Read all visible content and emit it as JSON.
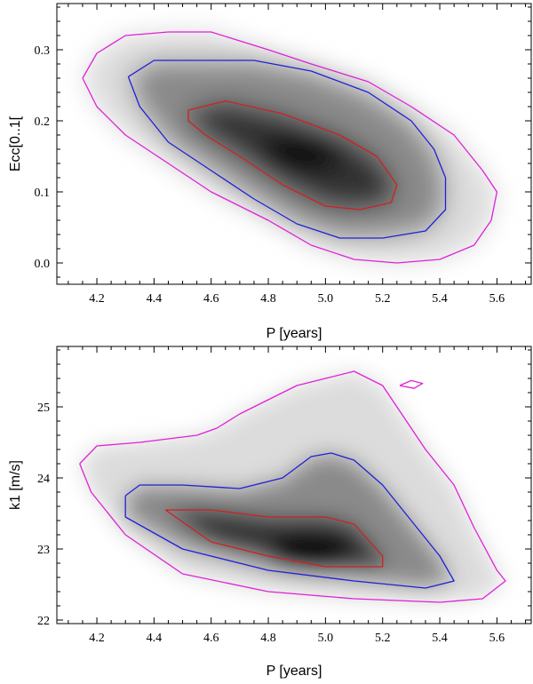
{
  "chart_data": [
    {
      "type": "density-contour",
      "xlabel": "P [years]",
      "ylabel": "Ecc[0..1[",
      "xlim": [
        4.06,
        5.72
      ],
      "ylim": [
        -0.03,
        0.365
      ],
      "xticks": [
        "4.2",
        "4.4",
        "4.6",
        "4.8",
        "5.0",
        "5.2",
        "5.4",
        "5.6"
      ],
      "yticks": [
        "0.0",
        "0.1",
        "0.2",
        "0.3"
      ],
      "density_peak": {
        "x": 4.92,
        "y": 0.155
      },
      "contours": [
        {
          "level": "inner",
          "color": "#d22020",
          "points": [
            [
              4.52,
              0.215
            ],
            [
              4.65,
              0.228
            ],
            [
              4.85,
              0.21
            ],
            [
              5.05,
              0.18
            ],
            [
              5.18,
              0.15
            ],
            [
              5.25,
              0.11
            ],
            [
              5.23,
              0.085
            ],
            [
              5.12,
              0.075
            ],
            [
              5.0,
              0.08
            ],
            [
              4.85,
              0.11
            ],
            [
              4.7,
              0.15
            ],
            [
              4.58,
              0.18
            ],
            [
              4.52,
              0.2
            ],
            [
              4.52,
              0.215
            ]
          ]
        },
        {
          "level": "middle",
          "color": "#2020d6",
          "points": [
            [
              4.31,
              0.262
            ],
            [
              4.4,
              0.285
            ],
            [
              4.55,
              0.285
            ],
            [
              4.75,
              0.285
            ],
            [
              4.95,
              0.27
            ],
            [
              5.15,
              0.24
            ],
            [
              5.3,
              0.2
            ],
            [
              5.38,
              0.16
            ],
            [
              5.42,
              0.12
            ],
            [
              5.42,
              0.075
            ],
            [
              5.35,
              0.045
            ],
            [
              5.2,
              0.035
            ],
            [
              5.05,
              0.035
            ],
            [
              4.9,
              0.055
            ],
            [
              4.75,
              0.09
            ],
            [
              4.6,
              0.13
            ],
            [
              4.45,
              0.17
            ],
            [
              4.35,
              0.22
            ],
            [
              4.31,
              0.262
            ]
          ]
        },
        {
          "level": "outer",
          "color": "#e020d8",
          "points": [
            [
              4.15,
              0.26
            ],
            [
              4.2,
              0.295
            ],
            [
              4.3,
              0.32
            ],
            [
              4.45,
              0.325
            ],
            [
              4.6,
              0.325
            ],
            [
              4.8,
              0.3
            ],
            [
              4.95,
              0.28
            ],
            [
              5.15,
              0.255
            ],
            [
              5.3,
              0.22
            ],
            [
              5.45,
              0.18
            ],
            [
              5.55,
              0.13
            ],
            [
              5.6,
              0.1
            ],
            [
              5.58,
              0.06
            ],
            [
              5.52,
              0.025
            ],
            [
              5.4,
              0.005
            ],
            [
              5.25,
              0.0
            ],
            [
              5.1,
              0.005
            ],
            [
              4.95,
              0.025
            ],
            [
              4.8,
              0.06
            ],
            [
              4.6,
              0.1
            ],
            [
              4.45,
              0.14
            ],
            [
              4.3,
              0.18
            ],
            [
              4.2,
              0.22
            ],
            [
              4.15,
              0.26
            ]
          ]
        }
      ]
    },
    {
      "type": "density-contour",
      "xlabel": "P [years]",
      "ylabel": "k1 [m/s]",
      "xlim": [
        4.06,
        5.72
      ],
      "ylim": [
        21.95,
        25.85
      ],
      "xticks": [
        "4.2",
        "4.4",
        "4.6",
        "4.8",
        "5.0",
        "5.2",
        "5.4",
        "5.6"
      ],
      "yticks": [
        "22",
        "23",
        "24",
        "25"
      ],
      "density_peak": {
        "x": 4.95,
        "y": 22.95
      },
      "contours": [
        {
          "level": "inner",
          "color": "#d22020",
          "points": [
            [
              4.44,
              23.55
            ],
            [
              4.6,
              23.55
            ],
            [
              4.8,
              23.45
            ],
            [
              5.0,
              23.45
            ],
            [
              5.1,
              23.35
            ],
            [
              5.2,
              22.9
            ],
            [
              5.2,
              22.75
            ],
            [
              5.0,
              22.75
            ],
            [
              4.8,
              22.9
            ],
            [
              4.6,
              23.1
            ],
            [
              4.44,
              23.55
            ]
          ]
        },
        {
          "level": "middle",
          "color": "#2020d6",
          "points": [
            [
              4.3,
              23.75
            ],
            [
              4.35,
              23.9
            ],
            [
              4.5,
              23.9
            ],
            [
              4.7,
              23.85
            ],
            [
              4.85,
              24.0
            ],
            [
              4.95,
              24.3
            ],
            [
              5.02,
              24.35
            ],
            [
              5.1,
              24.25
            ],
            [
              5.2,
              23.9
            ],
            [
              5.3,
              23.4
            ],
            [
              5.4,
              22.9
            ],
            [
              5.45,
              22.55
            ],
            [
              5.35,
              22.45
            ],
            [
              5.1,
              22.55
            ],
            [
              4.8,
              22.7
            ],
            [
              4.5,
              23.0
            ],
            [
              4.3,
              23.45
            ],
            [
              4.3,
              23.75
            ]
          ]
        },
        {
          "level": "outer",
          "color": "#e020d8",
          "points": [
            [
              4.14,
              24.2
            ],
            [
              4.2,
              24.45
            ],
            [
              4.35,
              24.5
            ],
            [
              4.55,
              24.6
            ],
            [
              4.62,
              24.7
            ],
            [
              4.7,
              24.9
            ],
            [
              4.8,
              25.1
            ],
            [
              4.9,
              25.3
            ],
            [
              5.0,
              25.4
            ],
            [
              5.1,
              25.5
            ],
            [
              5.2,
              25.3
            ],
            [
              5.25,
              25.0
            ],
            [
              5.35,
              24.4
            ],
            [
              5.45,
              23.9
            ],
            [
              5.52,
              23.3
            ],
            [
              5.6,
              22.7
            ],
            [
              5.63,
              22.55
            ],
            [
              5.55,
              22.3
            ],
            [
              5.4,
              22.25
            ],
            [
              5.1,
              22.3
            ],
            [
              4.8,
              22.4
            ],
            [
              4.5,
              22.65
            ],
            [
              4.3,
              23.2
            ],
            [
              4.18,
              23.8
            ],
            [
              4.14,
              24.2
            ]
          ]
        },
        {
          "level": "outer-islet",
          "color": "#e020d8",
          "points": [
            [
              5.26,
              25.3
            ],
            [
              5.3,
              25.37
            ],
            [
              5.34,
              25.33
            ],
            [
              5.31,
              25.26
            ],
            [
              5.26,
              25.3
            ]
          ]
        }
      ]
    }
  ]
}
